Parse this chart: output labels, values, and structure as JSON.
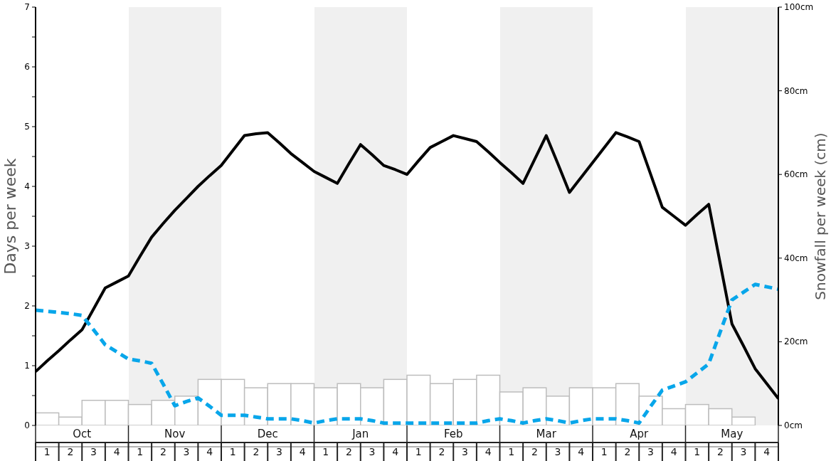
{
  "chart_data": {
    "type": "bar",
    "ylabel": "Days per week",
    "y2label": "Snowfall per week (cm)",
    "categories": [
      null,
      "1",
      null,
      "2",
      null,
      "3",
      null,
      "4",
      null,
      "1",
      null,
      "2",
      null,
      "3",
      null,
      "4",
      null,
      "1",
      null,
      "2",
      null,
      "3",
      null,
      "4",
      null,
      "1",
      null,
      "2",
      null,
      "3",
      null,
      "4",
      null,
      "1",
      null,
      "2",
      null,
      "3",
      null,
      "4",
      null,
      "1",
      null,
      "2",
      null,
      "3",
      null,
      "4",
      null,
      "1",
      null,
      "2",
      null,
      "3",
      null,
      "4",
      null,
      "1",
      null,
      "2",
      null,
      "3",
      null,
      "4",
      null
    ],
    "annotations": [
      "Oct",
      "Nov",
      "Dec",
      "Jan",
      "Feb",
      "Mar",
      "Apr",
      "May"
    ],
    "ylim": [
      0,
      7
    ],
    "yticks": [
      0,
      {
        "value": 0.5,
        "label": null
      },
      1,
      {
        "value": 1.5,
        "label": null
      },
      2,
      {
        "value": 2.5,
        "label": null
      },
      3,
      {
        "value": 3.5,
        "label": null
      },
      4,
      {
        "value": 4.5,
        "label": null
      },
      5,
      {
        "value": 5.5,
        "label": null
      },
      6,
      {
        "value": 6.5,
        "label": null
      },
      7
    ],
    "y2lim": [
      0,
      100
    ],
    "y2ticks": [
      {
        "value": 0,
        "label": "0cm"
      },
      {
        "value": 20,
        "label": "20cm"
      },
      {
        "value": 40,
        "label": "40cm"
      },
      {
        "value": 60,
        "label": "60cm"
      },
      {
        "value": 80,
        "label": "80cm"
      },
      {
        "value": 100,
        "label": "100cm"
      }
    ],
    "marker": "none",
    "series": [
      {
        "axis": "y2",
        "color": "#ffffff",
        "values": [
          null,
          3,
          null,
          2,
          null,
          6,
          null,
          6,
          null,
          5,
          null,
          6,
          null,
          7,
          null,
          11,
          null,
          11,
          null,
          9,
          null,
          10,
          null,
          10,
          null,
          9,
          null,
          10,
          null,
          9,
          null,
          11,
          null,
          12,
          null,
          10,
          null,
          11,
          null,
          12,
          null,
          8,
          null,
          9,
          null,
          7,
          null,
          9,
          null,
          9,
          null,
          10,
          null,
          7,
          null,
          4,
          null,
          5,
          null,
          4,
          null,
          2,
          null,
          0,
          null
        ]
      },
      {
        "type": "line",
        "color": "#000000",
        "line_style": "solid",
        "values": [
          0.9,
          1.08,
          1.25,
          1.43,
          1.6,
          1.95,
          2.3,
          2.4,
          2.5,
          2.83,
          3.15,
          3.38,
          3.6,
          3.8,
          4,
          4.18,
          4.35,
          4.6,
          4.85,
          4.88,
          4.9,
          4.73,
          4.55,
          4.4,
          4.25,
          4.15,
          4.05,
          4.38,
          4.7,
          4.53,
          4.35,
          4.28,
          4.2,
          4.43,
          4.65,
          4.75,
          4.85,
          4.8,
          4.75,
          4.58,
          4.4,
          4.23,
          4.05,
          4.45,
          4.85,
          4.38,
          3.9,
          4.15,
          4.4,
          4.65,
          4.9,
          4.83,
          4.75,
          4.2,
          3.65,
          3.5,
          3.35,
          3.53,
          3.7,
          2.7,
          1.7,
          1.33,
          0.95,
          0.7,
          0.45
        ]
      },
      {
        "type": "line",
        "color": "#08a6ea",
        "line_style": "dashed",
        "values": [
          1.93,
          1.91,
          1.89,
          1.87,
          1.84,
          1.6,
          1.35,
          1.23,
          1.11,
          1.08,
          1.04,
          0.69,
          0.33,
          0.4,
          0.46,
          0.32,
          0.17,
          0.17,
          0.17,
          0.14,
          0.11,
          0.11,
          0.11,
          0.08,
          0.04,
          0.08,
          0.11,
          0.11,
          0.11,
          0.08,
          0.04,
          0.04,
          0.04,
          0.04,
          0.04,
          0.04,
          0.04,
          0.04,
          0.04,
          0.08,
          0.11,
          0.08,
          0.04,
          0.08,
          0.11,
          0.08,
          0.04,
          0.08,
          0.11,
          0.11,
          0.11,
          0.08,
          0.04,
          0.32,
          0.59,
          0.66,
          0.73,
          0.88,
          1.03,
          1.57,
          2.1,
          2.23,
          2.36,
          2.32,
          2.28
        ]
      }
    ]
  }
}
